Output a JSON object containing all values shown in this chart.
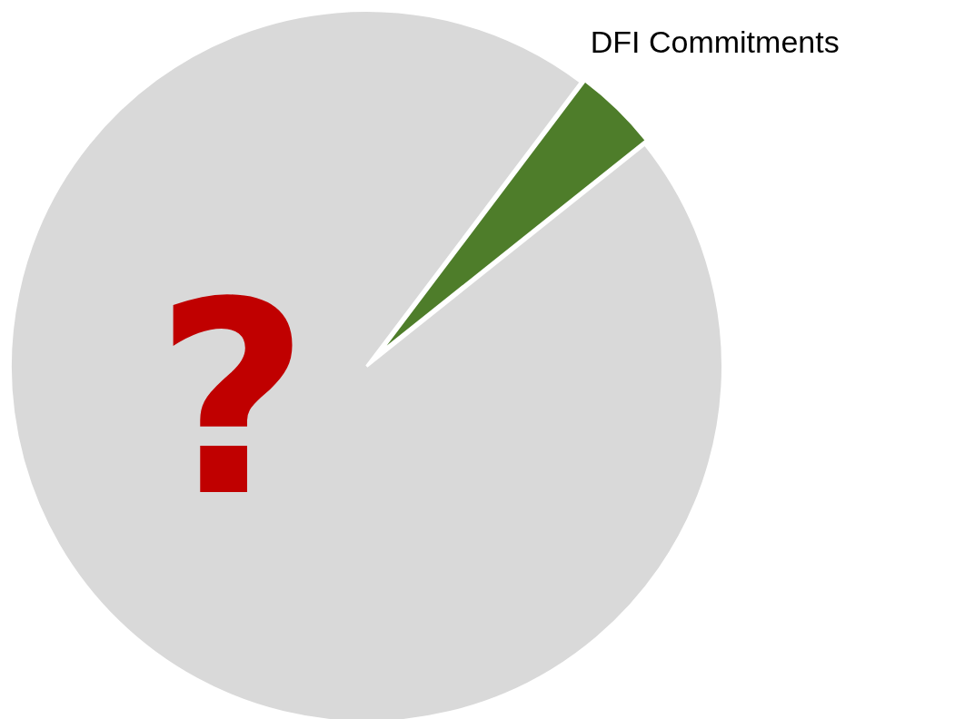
{
  "chart_data": {
    "type": "pie",
    "categories": [
      null,
      "DFI Commitments"
    ],
    "values": [
      96,
      4
    ],
    "colors": [
      "#d9d9d9",
      "#4e7d2a"
    ],
    "annotations": [
      "?"
    ]
  }
}
